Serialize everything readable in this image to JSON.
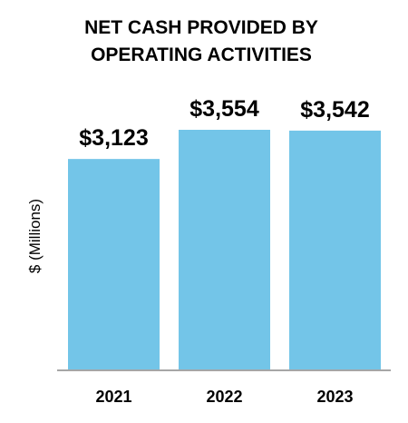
{
  "chart_data": {
    "type": "bar",
    "title_lines": [
      "NET CASH PROVIDED BY",
      "OPERATING ACTIVITIES"
    ],
    "ylabel": "$ (Millions)",
    "xlabel": "",
    "categories": [
      "2021",
      "2022",
      "2023"
    ],
    "values": [
      3123,
      3554,
      3542
    ],
    "value_labels": [
      "$3,123",
      "$3,554",
      "$3,542"
    ],
    "ylim": [
      0,
      4500
    ],
    "grid": false,
    "legend": "none",
    "bar_color": "#73C5E8",
    "axis_color": "#A6A6A6"
  }
}
